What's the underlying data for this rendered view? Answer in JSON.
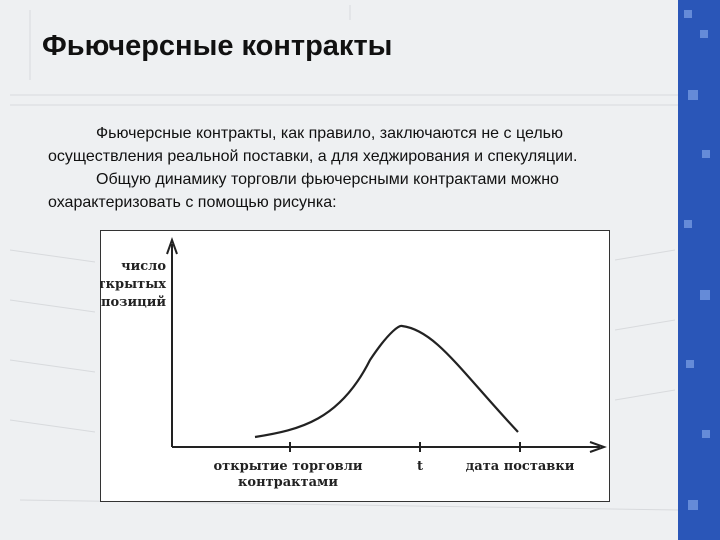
{
  "header": {
    "title": "Фьючерсные контракты"
  },
  "body": {
    "paragraphs": [
      "Фьючерсные контракты, как правило, заключаются не с целью осуществления реальной поставки, а для хеджирования и спекуляции.",
      "Общую динамику торговли фьючерсными контрактами можно охарактеризовать с помощью рисунка:"
    ]
  },
  "figure": {
    "y_label": [
      "число",
      "открытых",
      "позиций"
    ],
    "x_labels": {
      "start": [
        "открытие торговли",
        "контрактами"
      ],
      "peak": "t",
      "end": "дата поставки"
    }
  }
}
